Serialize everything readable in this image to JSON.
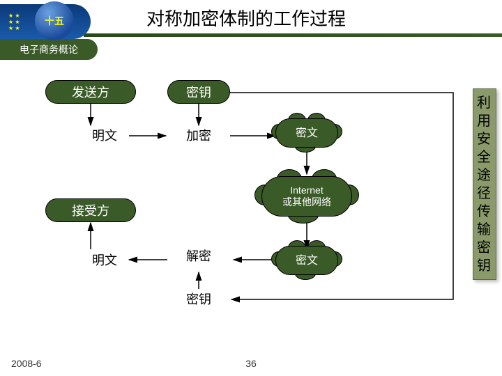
{
  "header": {
    "title": "对称加密体制的工作过程",
    "subtitle": "电子商务概论",
    "logo_text": "十五"
  },
  "nodes": {
    "sender": "发送方",
    "key_top": "密钥",
    "plaintext_top": "明文",
    "encrypt": "加密",
    "ciphertext_top": "密文",
    "internet_l1": "Internet",
    "internet_l2": "或其他网络",
    "receiver": "接受方",
    "decrypt": "解密",
    "ciphertext_bottom": "密文",
    "plaintext_bottom": "明文",
    "key_bottom": "密钥"
  },
  "sidebar": {
    "text": "利用安全途径传输密钥"
  },
  "footer": {
    "date": "2008-6",
    "page": "36"
  },
  "colors": {
    "node_fill": "#3a5a28",
    "sidebar_fill": "#8a9a6a",
    "header_blue": "#1a5aaa"
  }
}
